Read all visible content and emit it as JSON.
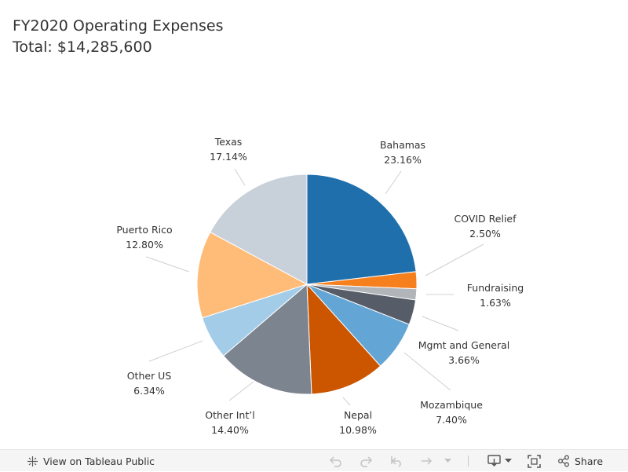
{
  "header": {
    "title": "FY2020 Operating Expenses",
    "subtitle": "Total: $14,285,600"
  },
  "chart_data": {
    "type": "pie",
    "title": "FY2020 Operating Expenses",
    "subtitle": "Total: $14,285,600",
    "start_angle_deg": 0,
    "direction": "clockwise",
    "slices": [
      {
        "label": "Bahamas",
        "pct_label": "23.16%",
        "value": 23.16,
        "color": "#1f6fad"
      },
      {
        "label": "COVID Relief",
        "pct_label": "2.50%",
        "value": 2.5,
        "color": "#f7801e"
      },
      {
        "label": "Fundraising",
        "pct_label": "1.63%",
        "value": 1.63,
        "color": "#b1b5ba"
      },
      {
        "label": "Mgmt and General",
        "pct_label": "3.66%",
        "value": 3.66,
        "color": "#575d68"
      },
      {
        "label": "Mozambique",
        "pct_label": "7.40%",
        "value": 7.4,
        "color": "#63a6d6"
      },
      {
        "label": "Nepal",
        "pct_label": "10.98%",
        "value": 10.98,
        "color": "#cc5500"
      },
      {
        "label": "Other Int’l",
        "pct_label": "14.40%",
        "value": 14.4,
        "color": "#7b848f"
      },
      {
        "label": "Other US",
        "pct_label": "6.34%",
        "value": 6.34,
        "color": "#a3cce9"
      },
      {
        "label": "Puerto Rico",
        "pct_label": "12.80%",
        "value": 12.8,
        "color": "#ffbc79"
      },
      {
        "label": "Texas",
        "pct_label": "17.14%",
        "value": 17.14,
        "color": "#c8d0d9"
      }
    ]
  },
  "toolbar": {
    "view_label": "View on Tableau Public",
    "share_label": "Share",
    "icons": [
      "tableau-icon",
      "undo-icon",
      "redo-icon",
      "revert-icon",
      "refresh-icon",
      "chevron-down-icon",
      "download-icon",
      "fullscreen-icon",
      "share-icon"
    ]
  }
}
